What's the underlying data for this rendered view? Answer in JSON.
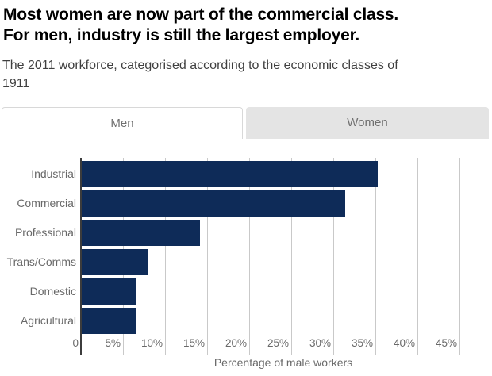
{
  "header": {
    "title_lines": [
      "Most women are now part of the commercial class.",
      "For men, industry is still the largest employer."
    ],
    "subtitle_lines": [
      "The 2011 workforce, categorised according to the economic classes of",
      "1911"
    ]
  },
  "tabs": [
    {
      "label": "Men",
      "active": true
    },
    {
      "label": "Women",
      "active": false
    }
  ],
  "chart_data": {
    "type": "bar",
    "orientation": "horizontal",
    "title": "The 2011 workforce, categorised according to the economic classes of 1911 (Men)",
    "categories": [
      "Industrial",
      "Commercial",
      "Professional",
      "Trans/Comms",
      "Domestic",
      "Agricultural"
    ],
    "values": [
      35.2,
      31.3,
      14.1,
      7.8,
      6.5,
      6.4
    ],
    "unit": "%",
    "xlabel": "Percentage of male workers",
    "ylabel": "",
    "x_tick_values": [
      0,
      5,
      10,
      15,
      20,
      25,
      30,
      35,
      40,
      45
    ],
    "x_tick_labels": [
      "0",
      "5%",
      "10%",
      "15%",
      "20%",
      "25%",
      "30%",
      "35%",
      "40%",
      "45%"
    ],
    "xlim": [
      0,
      48
    ],
    "grid": true,
    "legend": "none",
    "colors": {
      "bar": "#0e2b58",
      "gridline": "#c9c9c9",
      "zero_axis": "#3c3c3c",
      "labels": "#696969",
      "tab_inactive_bg": "#e4e4e4",
      "tab_border": "#d8d8d8"
    }
  }
}
